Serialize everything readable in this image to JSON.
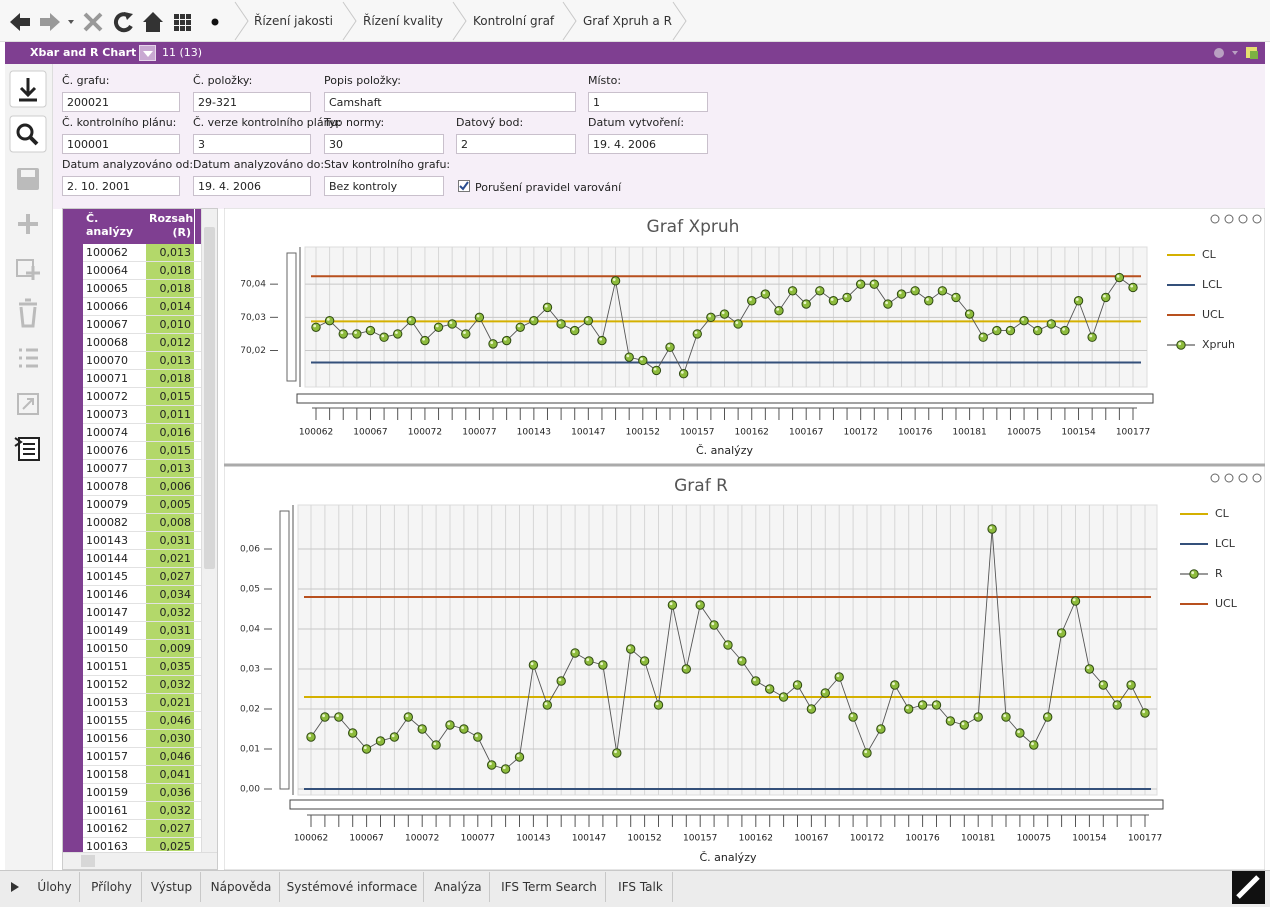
{
  "nav": {
    "breadcrumbs": [
      "Řízení jakosti",
      "Řízení kvality",
      "Kontrolní graf",
      "Graf Xpruh a R"
    ]
  },
  "titlebar": {
    "title": "Xbar and R Chart",
    "count": "11 (13)"
  },
  "form": {
    "fields": [
      {
        "label": "Č. grafu:",
        "value": "200021"
      },
      {
        "label": "Č. položky:",
        "value": "29-321"
      },
      {
        "label": "Popis položky:",
        "value": "Camshaft"
      },
      {
        "label": "Místo:",
        "value": "1"
      },
      {
        "label": "Č. kontrolního plánu:",
        "value": "100001"
      },
      {
        "label": "Č. verze kontrolního plánu:",
        "value": "3"
      },
      {
        "label": "Typ normy:",
        "value": "30"
      },
      {
        "label": "Datový bod:",
        "value": "2"
      },
      {
        "label": "Datum vytvoření:",
        "value": "19. 4. 2006"
      },
      {
        "label": "Datum analyzováno od:",
        "value": "2. 10. 2001"
      },
      {
        "label": "Datum analyzováno do:",
        "value": "19. 4. 2006"
      },
      {
        "label": "Stav kontrolního grafu:",
        "value": "Bez kontroly"
      }
    ],
    "checkbox": {
      "label": "Porušení pravidel varování",
      "checked": true
    }
  },
  "table": {
    "headers": [
      "Č. analýzy",
      "Rozsah (R)"
    ],
    "rows": [
      [
        "100062",
        "0,013"
      ],
      [
        "100064",
        "0,018"
      ],
      [
        "100065",
        "0,018"
      ],
      [
        "100066",
        "0,014"
      ],
      [
        "100067",
        "0,010"
      ],
      [
        "100068",
        "0,012"
      ],
      [
        "100070",
        "0,013"
      ],
      [
        "100071",
        "0,018"
      ],
      [
        "100072",
        "0,015"
      ],
      [
        "100073",
        "0,011"
      ],
      [
        "100074",
        "0,016"
      ],
      [
        "100076",
        "0,015"
      ],
      [
        "100077",
        "0,013"
      ],
      [
        "100078",
        "0,006"
      ],
      [
        "100079",
        "0,005"
      ],
      [
        "100082",
        "0,008"
      ],
      [
        "100143",
        "0,031"
      ],
      [
        "100144",
        "0,021"
      ],
      [
        "100145",
        "0,027"
      ],
      [
        "100146",
        "0,034"
      ],
      [
        "100147",
        "0,032"
      ],
      [
        "100149",
        "0,031"
      ],
      [
        "100150",
        "0,009"
      ],
      [
        "100151",
        "0,035"
      ],
      [
        "100152",
        "0,032"
      ],
      [
        "100153",
        "0,021"
      ],
      [
        "100155",
        "0,046"
      ],
      [
        "100156",
        "0,030"
      ],
      [
        "100157",
        "0,046"
      ],
      [
        "100158",
        "0,041"
      ],
      [
        "100159",
        "0,036"
      ],
      [
        "100161",
        "0,032"
      ],
      [
        "100162",
        "0,027"
      ],
      [
        "100163",
        "0,025"
      ]
    ]
  },
  "chart_data": [
    {
      "type": "line",
      "title": "Graf Xpruh",
      "x_label": "Č. analýzy",
      "categories": [
        "100062",
        null,
        null,
        null,
        "100067",
        null,
        null,
        null,
        "100072",
        null,
        null,
        null,
        "100077",
        null,
        null,
        null,
        "100143",
        null,
        null,
        null,
        "100147",
        null,
        null,
        null,
        "100152",
        null,
        null,
        null,
        "100157",
        null,
        null,
        null,
        "100162",
        null,
        null,
        null,
        "100167",
        null,
        null,
        null,
        "100172",
        null,
        null,
        null,
        "100176",
        null,
        null,
        null,
        "100181",
        null,
        null,
        null,
        "100075",
        null,
        null,
        null,
        "100154",
        null,
        null,
        null,
        "100177"
      ],
      "series": [
        {
          "name": "CL",
          "color": "#d4b000",
          "value": 70.0288
        },
        {
          "name": "LCL",
          "color": "#34507a",
          "value": 70.0164
        },
        {
          "name": "UCL",
          "color": "#b8501e",
          "value": 70.0424
        },
        {
          "name": "Xpruh",
          "color": "#8dbb3c",
          "values": [
            70.027,
            70.029,
            70.025,
            70.025,
            70.026,
            70.024,
            70.025,
            70.029,
            70.023,
            70.027,
            70.028,
            70.025,
            70.03,
            70.022,
            70.023,
            70.027,
            70.029,
            70.033,
            70.028,
            70.026,
            70.029,
            70.023,
            70.041,
            70.018,
            70.017,
            70.014,
            70.021,
            70.013,
            70.025,
            70.03,
            70.031,
            70.028,
            70.035,
            70.037,
            70.032,
            70.038,
            70.034,
            70.038,
            70.035,
            70.036,
            70.04,
            70.04,
            70.034,
            70.037,
            70.038,
            70.035,
            70.038,
            70.036,
            70.031,
            70.024,
            70.026,
            70.026,
            70.029,
            70.026,
            70.028,
            70.026,
            70.035,
            70.024,
            70.036,
            70.042,
            70.039
          ]
        }
      ],
      "ylim": [
        70.009,
        70.0512
      ],
      "yticks": [
        {
          "value": 70.02,
          "label": "70,02"
        },
        {
          "value": 70.03,
          "label": "70,03"
        },
        {
          "value": 70.04,
          "label": "70,04"
        }
      ],
      "grid": true
    },
    {
      "type": "line",
      "title": "Graf R",
      "x_label": "Č. analýzy",
      "categories": [
        "100062",
        null,
        null,
        null,
        "100067",
        null,
        null,
        null,
        "100072",
        null,
        null,
        null,
        "100077",
        null,
        null,
        null,
        "100143",
        null,
        null,
        null,
        "100147",
        null,
        null,
        null,
        "100152",
        null,
        null,
        null,
        "100157",
        null,
        null,
        null,
        "100162",
        null,
        null,
        null,
        "100167",
        null,
        null,
        null,
        "100172",
        null,
        null,
        null,
        "100176",
        null,
        null,
        null,
        "100181",
        null,
        null,
        null,
        "100075",
        null,
        null,
        null,
        "100154",
        null,
        null,
        null,
        "100177"
      ],
      "series": [
        {
          "name": "CL",
          "color": "#d4b000",
          "value": 0.023
        },
        {
          "name": "LCL",
          "color": "#34507a",
          "value": 0.0
        },
        {
          "name": "R",
          "color": "#8dbb3c",
          "values": [
            0.013,
            0.018,
            0.018,
            0.014,
            0.01,
            0.012,
            0.013,
            0.018,
            0.015,
            0.011,
            0.016,
            0.015,
            0.013,
            0.006,
            0.005,
            0.008,
            0.031,
            0.021,
            0.027,
            0.034,
            0.032,
            0.031,
            0.009,
            0.035,
            0.032,
            0.021,
            0.046,
            0.03,
            0.046,
            0.041,
            0.036,
            0.032,
            0.027,
            0.025,
            0.023,
            0.026,
            0.02,
            0.024,
            0.028,
            0.018,
            0.009,
            0.015,
            0.026,
            0.02,
            0.021,
            0.021,
            0.017,
            0.016,
            0.018,
            0.065,
            0.018,
            0.014,
            0.011,
            0.018,
            0.039,
            0.047,
            0.03,
            0.026,
            0.021,
            0.026,
            0.019
          ]
        },
        {
          "name": "UCL",
          "color": "#b8501e",
          "value": 0.048
        }
      ],
      "ylim": [
        -0.0015,
        0.071
      ],
      "yticks": [
        {
          "value": 0,
          "label": "0,00"
        },
        {
          "value": 0.01,
          "label": "0,01"
        },
        {
          "value": 0.02,
          "label": "0,02"
        },
        {
          "value": 0.03,
          "label": "0,03"
        },
        {
          "value": 0.04,
          "label": "0,04"
        },
        {
          "value": 0.05,
          "label": "0,05"
        },
        {
          "value": 0.06,
          "label": "0,06"
        }
      ],
      "grid": true
    }
  ],
  "tabs": [
    "Úlohy",
    "Přílohy",
    "Výstup",
    "Nápověda",
    "Systémové informace",
    "Analýza",
    "IFS Term Search",
    "IFS Talk"
  ]
}
